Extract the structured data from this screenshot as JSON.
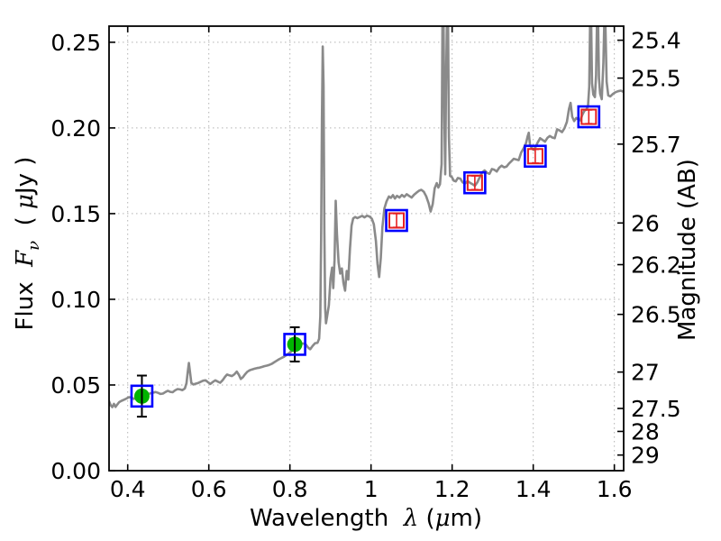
{
  "chart_data": {
    "type": "line",
    "title": "",
    "xlabel": {
      "prefix": "Wavelength  ",
      "symbol": "λ",
      "unit_open": " (",
      "unit_mu": "μ",
      "unit_close": "m)"
    },
    "ylabel_left": {
      "prefix": "Flux  ",
      "symbol": "F",
      "subscript": "ν",
      "unit_open": "  ( ",
      "unit_mu": "μ",
      "unit_close": "Jy )"
    },
    "ylabel_right": "Magnitude (AB)",
    "xlim": [
      0.354,
      1.623
    ],
    "ylim_flux": [
      0,
      0.2594
    ],
    "ab_zero_point_microjansky": 23.9,
    "x_ticks": [
      {
        "value": 0.4,
        "label": "0.4"
      },
      {
        "value": 0.6,
        "label": "0.6"
      },
      {
        "value": 0.8,
        "label": "0.8"
      },
      {
        "value": 1.0,
        "label": "1"
      },
      {
        "value": 1.2,
        "label": "1.2"
      },
      {
        "value": 1.4,
        "label": "1.4"
      },
      {
        "value": 1.6,
        "label": "1.6"
      }
    ],
    "y_ticks_left": [
      {
        "value": 0.0,
        "label": "0.00"
      },
      {
        "value": 0.05,
        "label": "0.05"
      },
      {
        "value": 0.1,
        "label": "0.10"
      },
      {
        "value": 0.15,
        "label": "0.15"
      },
      {
        "value": 0.2,
        "label": "0.20"
      },
      {
        "value": 0.25,
        "label": "0.25"
      }
    ],
    "y_ticks_right_mag": [
      {
        "mag": 25.4,
        "label": "25.4"
      },
      {
        "mag": 25.5,
        "label": "25.5"
      },
      {
        "mag": 25.7,
        "label": "25.7"
      },
      {
        "mag": 26.0,
        "label": "26"
      },
      {
        "mag": 26.2,
        "label": "26.2"
      },
      {
        "mag": 26.5,
        "label": "26.5"
      },
      {
        "mag": 27.0,
        "label": "27"
      },
      {
        "mag": 27.5,
        "label": "27.5"
      },
      {
        "mag": 28.0,
        "label": "28"
      },
      {
        "mag": 29.0,
        "label": "29"
      }
    ],
    "grid": {
      "show": true,
      "style": "dotted",
      "color": "#b3b3b3"
    },
    "colors": {
      "spectrum": "#8a8a8a",
      "blue_square": "#0000ff",
      "red_square": "#e62020",
      "green_circle": "#00b400",
      "error_bar": "#000000",
      "axes": "#000000",
      "background": "#ffffff"
    },
    "series": {
      "spectrum": {
        "points": [
          [
            0.354,
            0.0405
          ],
          [
            0.358,
            0.0382
          ],
          [
            0.362,
            0.0371
          ],
          [
            0.366,
            0.039
          ],
          [
            0.37,
            0.0372
          ],
          [
            0.374,
            0.0385
          ],
          [
            0.379,
            0.04
          ],
          [
            0.385,
            0.0408
          ],
          [
            0.391,
            0.0414
          ],
          [
            0.397,
            0.0421
          ],
          [
            0.403,
            0.0429
          ],
          [
            0.409,
            0.0428
          ],
          [
            0.415,
            0.0419
          ],
          [
            0.421,
            0.0424
          ],
          [
            0.427,
            0.043
          ],
          [
            0.433,
            0.0436
          ],
          [
            0.439,
            0.0443
          ],
          [
            0.445,
            0.044
          ],
          [
            0.451,
            0.0448
          ],
          [
            0.457,
            0.0452
          ],
          [
            0.463,
            0.0455
          ],
          [
            0.469,
            0.0459
          ],
          [
            0.475,
            0.0454
          ],
          [
            0.481,
            0.0448
          ],
          [
            0.487,
            0.045
          ],
          [
            0.493,
            0.0459
          ],
          [
            0.499,
            0.0466
          ],
          [
            0.505,
            0.046
          ],
          [
            0.511,
            0.0458
          ],
          [
            0.517,
            0.0469
          ],
          [
            0.523,
            0.0476
          ],
          [
            0.529,
            0.0474
          ],
          [
            0.535,
            0.047
          ],
          [
            0.541,
            0.048
          ],
          [
            0.545,
            0.051
          ],
          [
            0.548,
            0.0575
          ],
          [
            0.551,
            0.0628
          ],
          [
            0.554,
            0.0568
          ],
          [
            0.557,
            0.0512
          ],
          [
            0.562,
            0.0503
          ],
          [
            0.568,
            0.0508
          ],
          [
            0.574,
            0.0512
          ],
          [
            0.58,
            0.0519
          ],
          [
            0.586,
            0.0525
          ],
          [
            0.592,
            0.0527
          ],
          [
            0.598,
            0.0516
          ],
          [
            0.604,
            0.0506
          ],
          [
            0.61,
            0.0518
          ],
          [
            0.616,
            0.0527
          ],
          [
            0.622,
            0.052
          ],
          [
            0.628,
            0.0513
          ],
          [
            0.634,
            0.0528
          ],
          [
            0.64,
            0.0548
          ],
          [
            0.645,
            0.0561
          ],
          [
            0.651,
            0.0556
          ],
          [
            0.657,
            0.0552
          ],
          [
            0.663,
            0.0562
          ],
          [
            0.669,
            0.0578
          ],
          [
            0.674,
            0.056
          ],
          [
            0.679,
            0.0535
          ],
          [
            0.684,
            0.0545
          ],
          [
            0.689,
            0.0561
          ],
          [
            0.695,
            0.0577
          ],
          [
            0.701,
            0.0586
          ],
          [
            0.707,
            0.0591
          ],
          [
            0.713,
            0.0595
          ],
          [
            0.719,
            0.0599
          ],
          [
            0.725,
            0.0601
          ],
          [
            0.731,
            0.0605
          ],
          [
            0.737,
            0.061
          ],
          [
            0.743,
            0.0613
          ],
          [
            0.749,
            0.0617
          ],
          [
            0.755,
            0.0623
          ],
          [
            0.761,
            0.0632
          ],
          [
            0.767,
            0.0641
          ],
          [
            0.773,
            0.065
          ],
          [
            0.779,
            0.0657
          ],
          [
            0.785,
            0.0664
          ],
          [
            0.791,
            0.0674
          ],
          [
            0.797,
            0.0684
          ],
          [
            0.803,
            0.0694
          ],
          [
            0.809,
            0.0708
          ],
          [
            0.815,
            0.0726
          ],
          [
            0.821,
            0.0738
          ],
          [
            0.827,
            0.0744
          ],
          [
            0.833,
            0.0742
          ],
          [
            0.839,
            0.0737
          ],
          [
            0.845,
            0.0718
          ],
          [
            0.85,
            0.0709
          ],
          [
            0.856,
            0.0728
          ],
          [
            0.862,
            0.0744
          ],
          [
            0.868,
            0.0746
          ],
          [
            0.872,
            0.077
          ],
          [
            0.875,
            0.09
          ],
          [
            0.877,
            0.135
          ],
          [
            0.879,
            0.205
          ],
          [
            0.881,
            0.2475
          ],
          [
            0.883,
            0.225
          ],
          [
            0.885,
            0.14
          ],
          [
            0.887,
            0.095
          ],
          [
            0.889,
            0.086
          ],
          [
            0.892,
            0.0905
          ],
          [
            0.896,
            0.0965
          ],
          [
            0.9,
            0.112
          ],
          [
            0.904,
            0.1185
          ],
          [
            0.907,
            0.1065
          ],
          [
            0.91,
            0.123
          ],
          [
            0.913,
            0.1575
          ],
          [
            0.916,
            0.138
          ],
          [
            0.92,
            0.1215
          ],
          [
            0.924,
            0.115
          ],
          [
            0.928,
            0.118
          ],
          [
            0.932,
            0.1095
          ],
          [
            0.936,
            0.105
          ],
          [
            0.94,
            0.1165
          ],
          [
            0.944,
            0.1115
          ],
          [
            0.948,
            0.1295
          ],
          [
            0.952,
            0.143
          ],
          [
            0.956,
            0.1472
          ],
          [
            0.961,
            0.148
          ],
          [
            0.966,
            0.1474
          ],
          [
            0.972,
            0.148
          ],
          [
            0.978,
            0.1487
          ],
          [
            0.984,
            0.1478
          ],
          [
            0.99,
            0.1488
          ],
          [
            0.996,
            0.1483
          ],
          [
            1.002,
            0.147
          ],
          [
            1.007,
            0.1438
          ],
          [
            1.012,
            0.134
          ],
          [
            1.016,
            0.1205
          ],
          [
            1.02,
            0.113
          ],
          [
            1.024,
            0.124
          ],
          [
            1.028,
            0.142
          ],
          [
            1.033,
            0.153
          ],
          [
            1.038,
            0.157
          ],
          [
            1.044,
            0.16
          ],
          [
            1.049,
            0.1592
          ],
          [
            1.054,
            0.1608
          ],
          [
            1.059,
            0.1588
          ],
          [
            1.064,
            0.1604
          ],
          [
            1.07,
            0.1594
          ],
          [
            1.076,
            0.1609
          ],
          [
            1.082,
            0.1598
          ],
          [
            1.088,
            0.1613
          ],
          [
            1.094,
            0.1603
          ],
          [
            1.1,
            0.1594
          ],
          [
            1.106,
            0.161
          ],
          [
            1.112,
            0.1622
          ],
          [
            1.118,
            0.1633
          ],
          [
            1.124,
            0.1639
          ],
          [
            1.13,
            0.1628
          ],
          [
            1.136,
            0.1601
          ],
          [
            1.142,
            0.156
          ],
          [
            1.147,
            0.1512
          ],
          [
            1.152,
            0.1555
          ],
          [
            1.157,
            0.1648
          ],
          [
            1.162,
            0.1678
          ],
          [
            1.166,
            0.1652
          ],
          [
            1.17,
            0.1672
          ],
          [
            1.174,
            0.179
          ],
          [
            1.176,
            0.259
          ],
          [
            1.179,
            0.259
          ],
          [
            1.181,
            0.205
          ],
          [
            1.183,
            0.173
          ],
          [
            1.185,
            0.225
          ],
          [
            1.187,
            0.259
          ],
          [
            1.19,
            0.259
          ],
          [
            1.192,
            0.195
          ],
          [
            1.195,
            0.172
          ],
          [
            1.199,
            0.1715
          ],
          [
            1.204,
            0.1692
          ],
          [
            1.209,
            0.1688
          ],
          [
            1.214,
            0.1708
          ],
          [
            1.22,
            0.1704
          ],
          [
            1.226,
            0.1682
          ],
          [
            1.232,
            0.1676
          ],
          [
            1.238,
            0.169
          ],
          [
            1.244,
            0.168
          ],
          [
            1.25,
            0.1672
          ],
          [
            1.256,
            0.1662
          ],
          [
            1.262,
            0.1682
          ],
          [
            1.268,
            0.1712
          ],
          [
            1.274,
            0.174
          ],
          [
            1.28,
            0.1752
          ],
          [
            1.286,
            0.1738
          ],
          [
            1.292,
            0.1732
          ],
          [
            1.298,
            0.176
          ],
          [
            1.304,
            0.1756
          ],
          [
            1.31,
            0.1746
          ],
          [
            1.316,
            0.1768
          ],
          [
            1.322,
            0.178
          ],
          [
            1.328,
            0.177
          ],
          [
            1.334,
            0.1774
          ],
          [
            1.34,
            0.1792
          ],
          [
            1.346,
            0.1806
          ],
          [
            1.352,
            0.182
          ],
          [
            1.358,
            0.1816
          ],
          [
            1.364,
            0.1812
          ],
          [
            1.37,
            0.1855
          ],
          [
            1.376,
            0.188
          ],
          [
            1.382,
            0.191
          ],
          [
            1.386,
            0.195
          ],
          [
            1.389,
            0.1972
          ],
          [
            1.392,
            0.19
          ],
          [
            1.396,
            0.1884
          ],
          [
            1.401,
            0.1872
          ],
          [
            1.406,
            0.189
          ],
          [
            1.411,
            0.1915
          ],
          [
            1.417,
            0.194
          ],
          [
            1.423,
            0.193
          ],
          [
            1.429,
            0.192
          ],
          [
            1.435,
            0.1942
          ],
          [
            1.441,
            0.1953
          ],
          [
            1.447,
            0.1944
          ],
          [
            1.453,
            0.194
          ],
          [
            1.459,
            0.1992
          ],
          [
            1.465,
            0.1985
          ],
          [
            1.471,
            0.1976
          ],
          [
            1.477,
            0.1998
          ],
          [
            1.483,
            0.2035
          ],
          [
            1.488,
            0.211
          ],
          [
            1.492,
            0.2146
          ],
          [
            1.496,
            0.2065
          ],
          [
            1.501,
            0.204
          ],
          [
            1.506,
            0.2058
          ],
          [
            1.511,
            0.205
          ],
          [
            1.516,
            0.2044
          ],
          [
            1.521,
            0.2076
          ],
          [
            1.526,
            0.21
          ],
          [
            1.531,
            0.2108
          ],
          [
            1.535,
            0.2125
          ],
          [
            1.538,
            0.224
          ],
          [
            1.54,
            0.259
          ],
          [
            1.543,
            0.259
          ],
          [
            1.545,
            0.226
          ],
          [
            1.548,
            0.2195
          ],
          [
            1.552,
            0.218
          ],
          [
            1.555,
            0.231
          ],
          [
            1.557,
            0.259
          ],
          [
            1.56,
            0.259
          ],
          [
            1.562,
            0.229
          ],
          [
            1.565,
            0.22
          ],
          [
            1.569,
            0.2168
          ],
          [
            1.573,
            0.238
          ],
          [
            1.575,
            0.259
          ],
          [
            1.578,
            0.259
          ],
          [
            1.581,
            0.227
          ],
          [
            1.585,
            0.219
          ],
          [
            1.59,
            0.2184
          ],
          [
            1.596,
            0.2198
          ],
          [
            1.602,
            0.2208
          ],
          [
            1.609,
            0.2214
          ],
          [
            1.616,
            0.2218
          ],
          [
            1.623,
            0.221
          ]
        ]
      },
      "blue_squares": {
        "points": [
          {
            "x": 0.435,
            "flux": 0.0435
          },
          {
            "x": 0.812,
            "flux": 0.0737
          },
          {
            "x": 1.063,
            "flux": 0.146
          },
          {
            "x": 1.256,
            "flux": 0.168
          },
          {
            "x": 1.405,
            "flux": 0.1835
          },
          {
            "x": 1.537,
            "flux": 0.2065
          }
        ]
      },
      "green_circles": {
        "points": [
          {
            "x": 0.435,
            "flux": 0.0435,
            "err": 0.012
          },
          {
            "x": 0.812,
            "flux": 0.0737,
            "err": 0.01
          }
        ]
      },
      "red_squares": {
        "points": [
          {
            "x": 1.063,
            "flux": 0.146,
            "err": 0.004
          },
          {
            "x": 1.256,
            "flux": 0.168,
            "err": 0.004
          },
          {
            "x": 1.405,
            "flux": 0.1835,
            "err": 0.004
          },
          {
            "x": 1.537,
            "flux": 0.2065,
            "err": 0.004
          }
        ]
      }
    }
  }
}
